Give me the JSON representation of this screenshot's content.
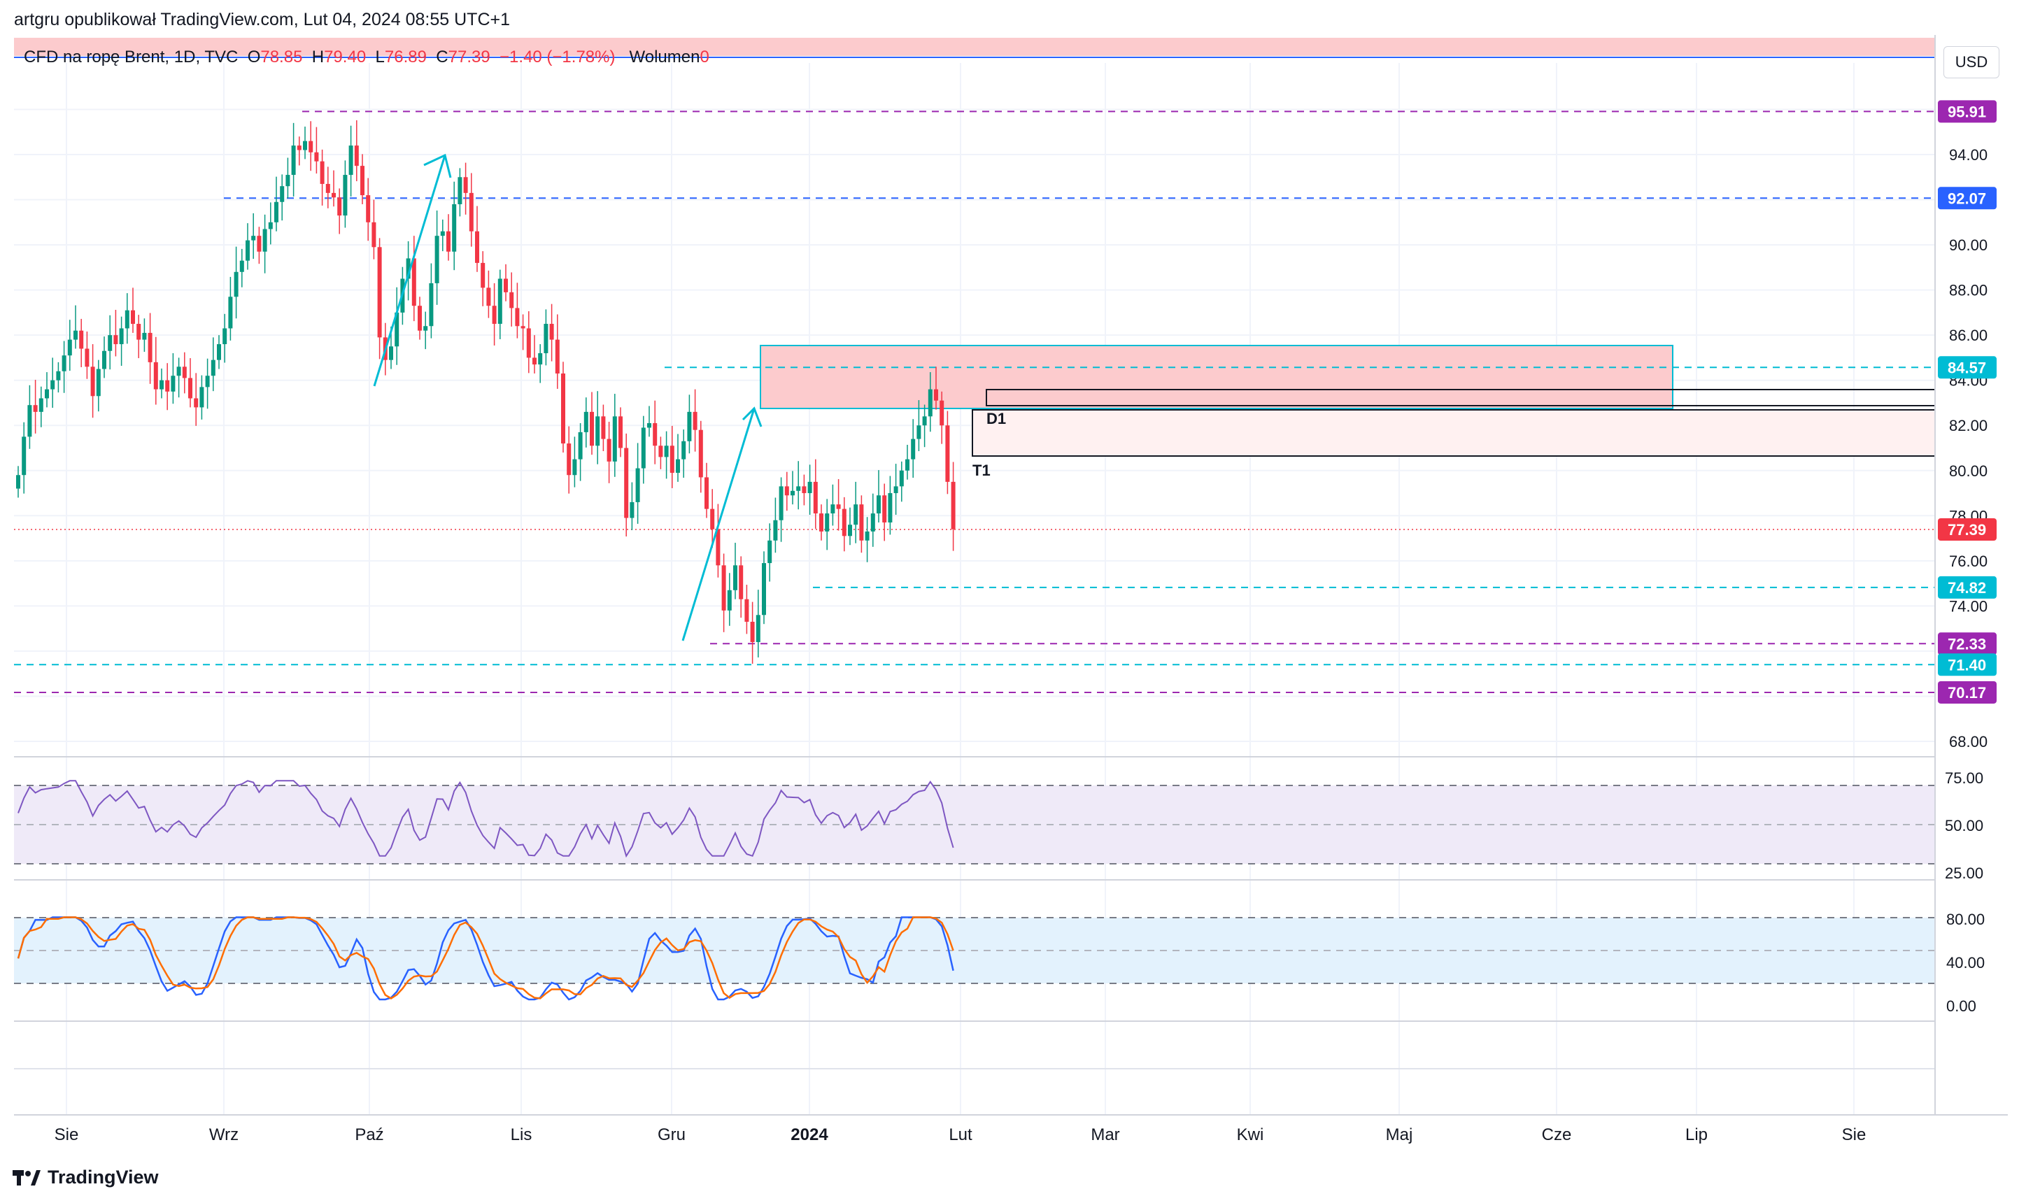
{
  "header": {
    "published_by": "artgru opublikował TradingView.com, Lut 04, 2024 08:55 UTC+1"
  },
  "legend": {
    "symbol": "CFD na ropę Brent, 1D, TVC",
    "open_label": "O",
    "open": "78.85",
    "high_label": "H",
    "high": "79.40",
    "low_label": "L",
    "low": "76.89",
    "close_label": "C",
    "close": "77.39",
    "change": "−1.40 (−1.78%)",
    "volume_label": "Wolumen",
    "volume": "0"
  },
  "currency_button": "USD",
  "brand": "TradingView",
  "colors": {
    "up": "#089981",
    "down": "#f23645",
    "purple": "#9c27b0",
    "cyan": "#00bcd4",
    "blue": "#2962ff",
    "rsi": "#7e57c2",
    "stoch_k": "#2962ff",
    "stoch_d": "#ff6d00"
  },
  "chart_data": {
    "type": "candlestick",
    "price_axis": {
      "min": 66,
      "max": 97,
      "ticks": [
        "68.00",
        "74.00",
        "76.00",
        "78.00",
        "80.00",
        "82.00",
        "84.00",
        "86.00",
        "88.00",
        "90.00",
        "94.00"
      ]
    },
    "price_labels": [
      {
        "value": 95.91,
        "text": "95.91",
        "color": "#9c27b0"
      },
      {
        "value": 92.07,
        "text": "92.07",
        "color": "#2962ff"
      },
      {
        "value": 84.57,
        "text": "84.57",
        "color": "#00bcd4"
      },
      {
        "value": 77.39,
        "text": "77.39",
        "color": "#f23645"
      },
      {
        "value": 74.82,
        "text": "74.82",
        "color": "#00bcd4"
      },
      {
        "value": 72.33,
        "text": "72.33",
        "color": "#9c27b0"
      },
      {
        "value": 71.4,
        "text": "71.40",
        "color": "#00bcd4"
      },
      {
        "value": 70.17,
        "text": "70.17",
        "color": "#9c27b0"
      }
    ],
    "time_axis": [
      "Sie",
      "Wrz",
      "Paź",
      "Lis",
      "Gru",
      "2024",
      "Lut",
      "Mar",
      "Kwi",
      "Maj",
      "Cze",
      "Lip",
      "Sie"
    ],
    "annotations": [
      "D1",
      "T1"
    ],
    "closes": [
      79.8,
      81.5,
      82.9,
      82.6,
      83.2,
      83.6,
      84.0,
      84.4,
      85.1,
      85.8,
      86.2,
      85.4,
      84.6,
      83.3,
      84.5,
      85.3,
      86.0,
      85.6,
      86.3,
      87.1,
      86.5,
      85.8,
      86.1,
      84.8,
      83.6,
      84.0,
      83.5,
      84.2,
      84.6,
      84.1,
      83.2,
      82.8,
      83.7,
      84.2,
      84.9,
      85.6,
      86.3,
      87.7,
      88.8,
      89.3,
      90.2,
      90.4,
      89.7,
      90.7,
      91.0,
      91.9,
      92.6,
      93.1,
      94.4,
      94.2,
      94.6,
      94.1,
      93.7,
      92.7,
      92.3,
      92.1,
      91.3,
      93.1,
      94.4,
      93.5,
      92.2,
      91.0,
      89.9,
      85.9,
      84.9,
      85.5,
      87.0,
      88.5,
      89.4,
      87.3,
      86.2,
      86.4,
      88.3,
      90.4,
      90.6,
      89.7,
      91.8,
      93.0,
      92.3,
      90.6,
      89.2,
      88.1,
      87.3,
      86.5,
      88.5,
      87.9,
      87.2,
      86.4,
      86.3,
      85.0,
      84.7,
      85.2,
      86.5,
      85.8,
      84.3,
      81.2,
      79.8,
      80.5,
      81.7,
      82.6,
      81.1,
      82.4,
      81.4,
      80.4,
      82.4,
      81.0,
      77.9,
      78.6,
      80.1,
      81.9,
      82.1,
      81.1,
      80.6,
      81.1,
      79.9,
      80.5,
      81.3,
      82.6,
      81.8,
      79.7,
      78.3,
      77.4,
      75.8,
      73.8,
      74.7,
      75.8,
      74.3,
      73.3,
      72.4,
      73.6,
      75.9,
      76.9,
      77.8,
      79.3,
      78.9,
      79.1,
      79.3,
      79.0,
      79.5,
      78.1,
      77.3,
      78.1,
      78.5,
      78.3,
      77.1,
      77.6,
      78.5,
      76.9,
      77.3,
      78.1,
      78.9,
      77.7,
      79.0,
      79.3,
      80.0,
      80.5,
      81.4,
      82.0,
      82.4,
      83.6,
      83.1,
      82.0,
      79.5,
      77.4
    ],
    "rsi": {
      "label_ticks": [
        "75.00",
        "50.00",
        "25.00"
      ],
      "upper": 70,
      "lower": 30
    },
    "stoch": {
      "label_ticks": [
        "80.00",
        "40.00",
        "0.00"
      ],
      "upper": 80,
      "lower": 20
    }
  }
}
